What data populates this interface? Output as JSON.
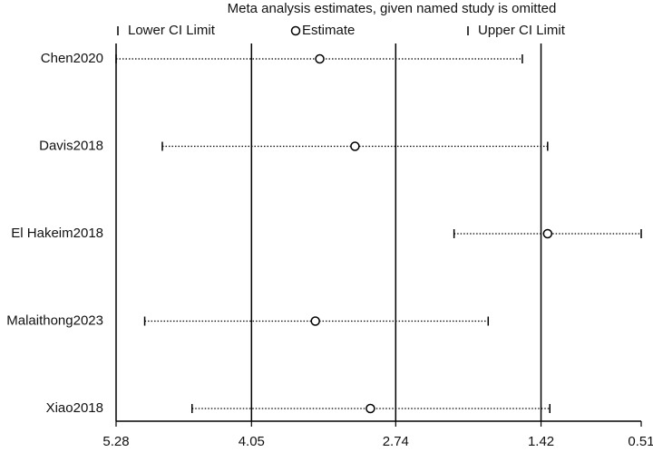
{
  "chart_data": {
    "type": "forest",
    "title": "Meta  analysis estimates, given named study is omitted",
    "categories": [
      "Chen2020",
      "Davis2018",
      "El  Hakeim2018",
      "Malaithong2023",
      "Xiao2018"
    ],
    "series": [
      {
        "name": "Lower CI Limit",
        "values": [
          5.28,
          4.86,
          2.21,
          5.02,
          4.59
        ]
      },
      {
        "name": "Estimate",
        "values": [
          3.43,
          3.11,
          1.36,
          3.47,
          2.97
        ]
      },
      {
        "name": "Upper CI Limit",
        "values": [
          1.59,
          1.36,
          0.51,
          1.9,
          1.34
        ]
      }
    ],
    "xlim": [
      5.28,
      0.51
    ],
    "xticks": [
      5.28,
      4.05,
      2.74,
      1.42,
      0.51
    ],
    "reference_lines": [
      4.05,
      2.74,
      1.42
    ],
    "color": "#000000"
  }
}
